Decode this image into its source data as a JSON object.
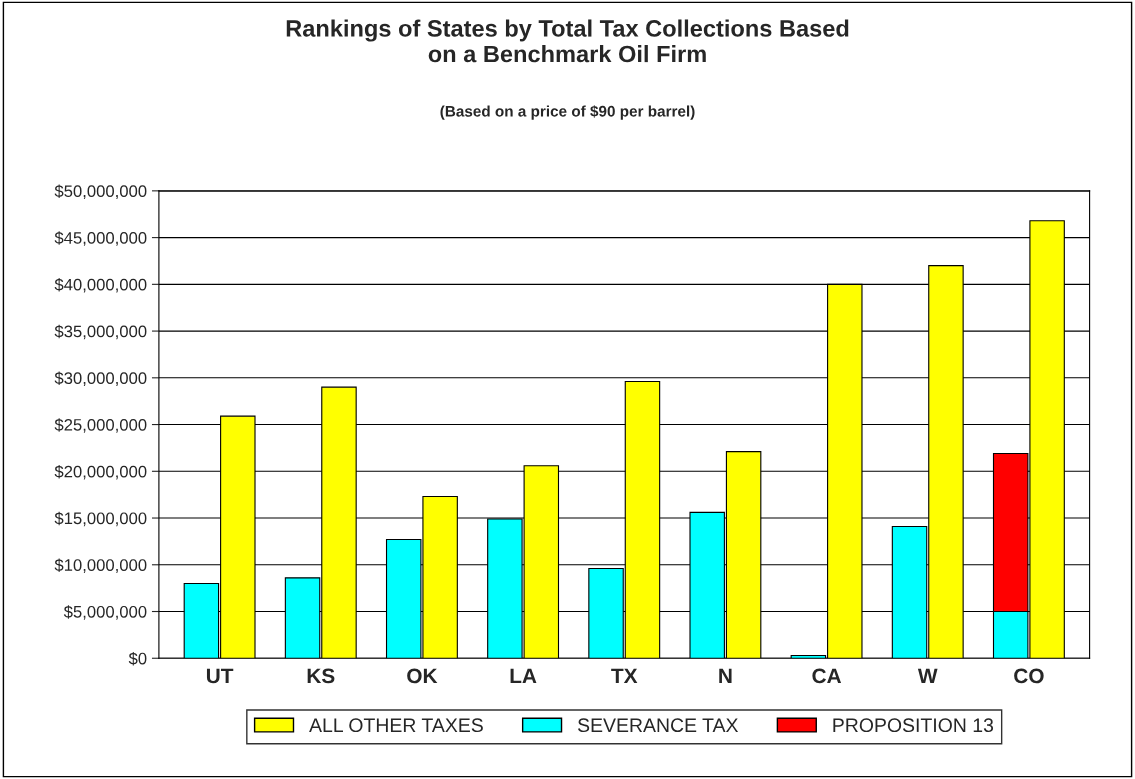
{
  "chart_data": {
    "type": "bar",
    "title": "Rankings of States by Total Tax Collections Based\non a Benchmark Oil Firm",
    "subtitle": "(Based on a price of $90 per barrel)",
    "categories": [
      "UT",
      "KS",
      "OK",
      "LA",
      "TX",
      "N",
      "CA",
      "W",
      "CO"
    ],
    "series": [
      {
        "name": "ALL OTHER TAXES",
        "color": "#ffff00",
        "values": [
          25900000,
          29000000,
          17300000,
          20600000,
          29600000,
          22100000,
          40000000,
          42000000,
          46800000
        ]
      },
      {
        "name": "SEVERANCE TAX",
        "color": "#00ffff",
        "values": [
          8000000,
          8600000,
          12700000,
          14900000,
          9600000,
          15600000,
          300000,
          14100000,
          5000000
        ]
      },
      {
        "name": "PROPOSITION 13",
        "color": "#ff0000",
        "values": [
          null,
          null,
          null,
          null,
          null,
          null,
          null,
          null,
          16900000
        ],
        "base": [
          null,
          null,
          null,
          null,
          null,
          null,
          null,
          null,
          5000000
        ]
      }
    ],
    "ylim": [
      0,
      50000000
    ],
    "yticks": [
      {
        "value": 0,
        "label": "$0"
      },
      {
        "value": 5000000,
        "label": "$5,000,000"
      },
      {
        "value": 10000000,
        "label": "$10,000,000"
      },
      {
        "value": 15000000,
        "label": "$15,000,000"
      },
      {
        "value": 20000000,
        "label": "$20,000,000"
      },
      {
        "value": 25000000,
        "label": "$25,000,000"
      },
      {
        "value": 30000000,
        "label": "$30,000,000"
      },
      {
        "value": 35000000,
        "label": "$35,000,000"
      },
      {
        "value": 40000000,
        "label": "$40,000,000"
      },
      {
        "value": 45000000,
        "label": "$45,000,000"
      },
      {
        "value": 50000000,
        "label": "$50,000,000"
      }
    ],
    "grid": "y",
    "legend": "bottom"
  }
}
